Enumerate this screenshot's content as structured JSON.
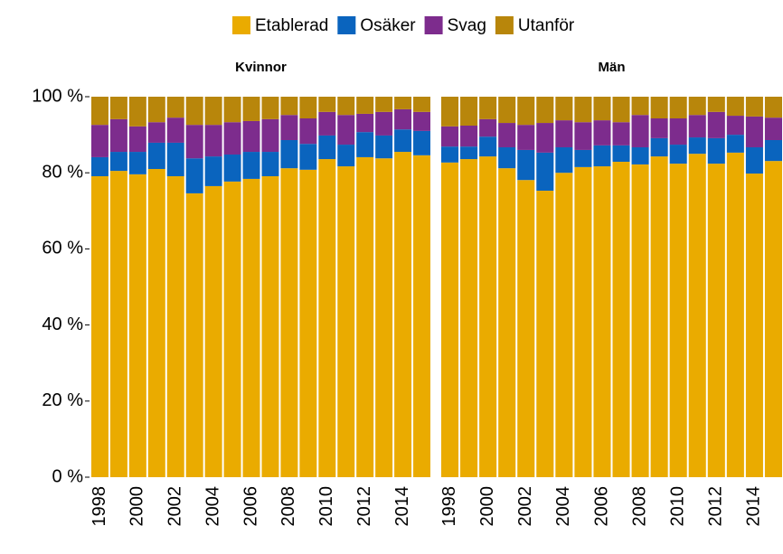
{
  "chart_data": {
    "type": "bar",
    "stacked": true,
    "categories": [
      "1998",
      null,
      "2000",
      null,
      "2002",
      null,
      "2004",
      null,
      "2006",
      null,
      "2008",
      null,
      "2010",
      null,
      "2012",
      null,
      "2014",
      null
    ],
    "series": [
      {
        "name": "Etablerad",
        "color": "#EAAB00"
      },
      {
        "name": "Osäker",
        "color": "#0A64BE"
      },
      {
        "name": "Svag",
        "color": "#7D2C8D"
      },
      {
        "name": "Utanför",
        "color": "#B8860B"
      }
    ],
    "panels": [
      {
        "title": "Kvinnor",
        "values": [
          [
            79.1,
            80.5,
            79.6,
            81.0,
            79.1,
            74.6,
            76.5,
            77.7,
            78.4,
            79.1,
            81.2,
            80.8,
            83.6,
            81.7,
            84.1,
            83.8,
            85.5,
            84.6
          ],
          [
            5.0,
            5.0,
            5.9,
            6.9,
            8.8,
            9.2,
            7.8,
            7.1,
            7.1,
            6.4,
            7.4,
            6.8,
            6.2,
            5.7,
            6.6,
            6.0,
            5.9,
            6.4
          ],
          [
            8.5,
            8.6,
            6.7,
            5.4,
            6.6,
            8.8,
            8.3,
            8.5,
            8.1,
            8.6,
            6.6,
            6.7,
            6.2,
            7.8,
            4.8,
            6.2,
            5.3,
            5.0
          ],
          [
            7.4,
            5.9,
            7.8,
            6.7,
            5.5,
            7.4,
            7.4,
            6.7,
            6.4,
            5.9,
            4.8,
            5.7,
            4.0,
            4.8,
            4.5,
            4.0,
            3.3,
            4.0
          ]
        ]
      },
      {
        "title": "Män",
        "values": [
          [
            82.7,
            83.6,
            84.3,
            81.2,
            78.1,
            75.3,
            80.0,
            81.5,
            81.7,
            82.9,
            82.2,
            84.3,
            82.4,
            85.0,
            82.4,
            85.3,
            79.8,
            83.1
          ],
          [
            4.2,
            3.3,
            5.2,
            5.5,
            7.9,
            10.0,
            6.7,
            4.5,
            5.5,
            4.3,
            4.5,
            4.8,
            5.0,
            4.3,
            6.7,
            4.7,
            6.9,
            5.5
          ],
          [
            5.3,
            5.5,
            4.6,
            6.4,
            6.6,
            7.8,
            7.1,
            7.3,
            6.6,
            6.1,
            8.5,
            5.2,
            6.9,
            5.9,
            6.9,
            5.0,
            8.1,
            5.9
          ],
          [
            7.8,
            7.6,
            5.9,
            6.9,
            7.4,
            6.9,
            6.2,
            6.7,
            6.2,
            6.7,
            4.8,
            5.7,
            5.7,
            4.8,
            4.0,
            5.0,
            5.2,
            5.5
          ]
        ]
      }
    ],
    "ylim": [
      0,
      100
    ],
    "yticks": [
      {
        "value": 0,
        "label": "0 %"
      },
      {
        "value": 20,
        "label": "20 %"
      },
      {
        "value": 40,
        "label": "40 %"
      },
      {
        "value": 60,
        "label": "60 %"
      },
      {
        "value": 80,
        "label": "80 %"
      },
      {
        "value": 100,
        "label": "100 %"
      }
    ],
    "legend": "top"
  }
}
